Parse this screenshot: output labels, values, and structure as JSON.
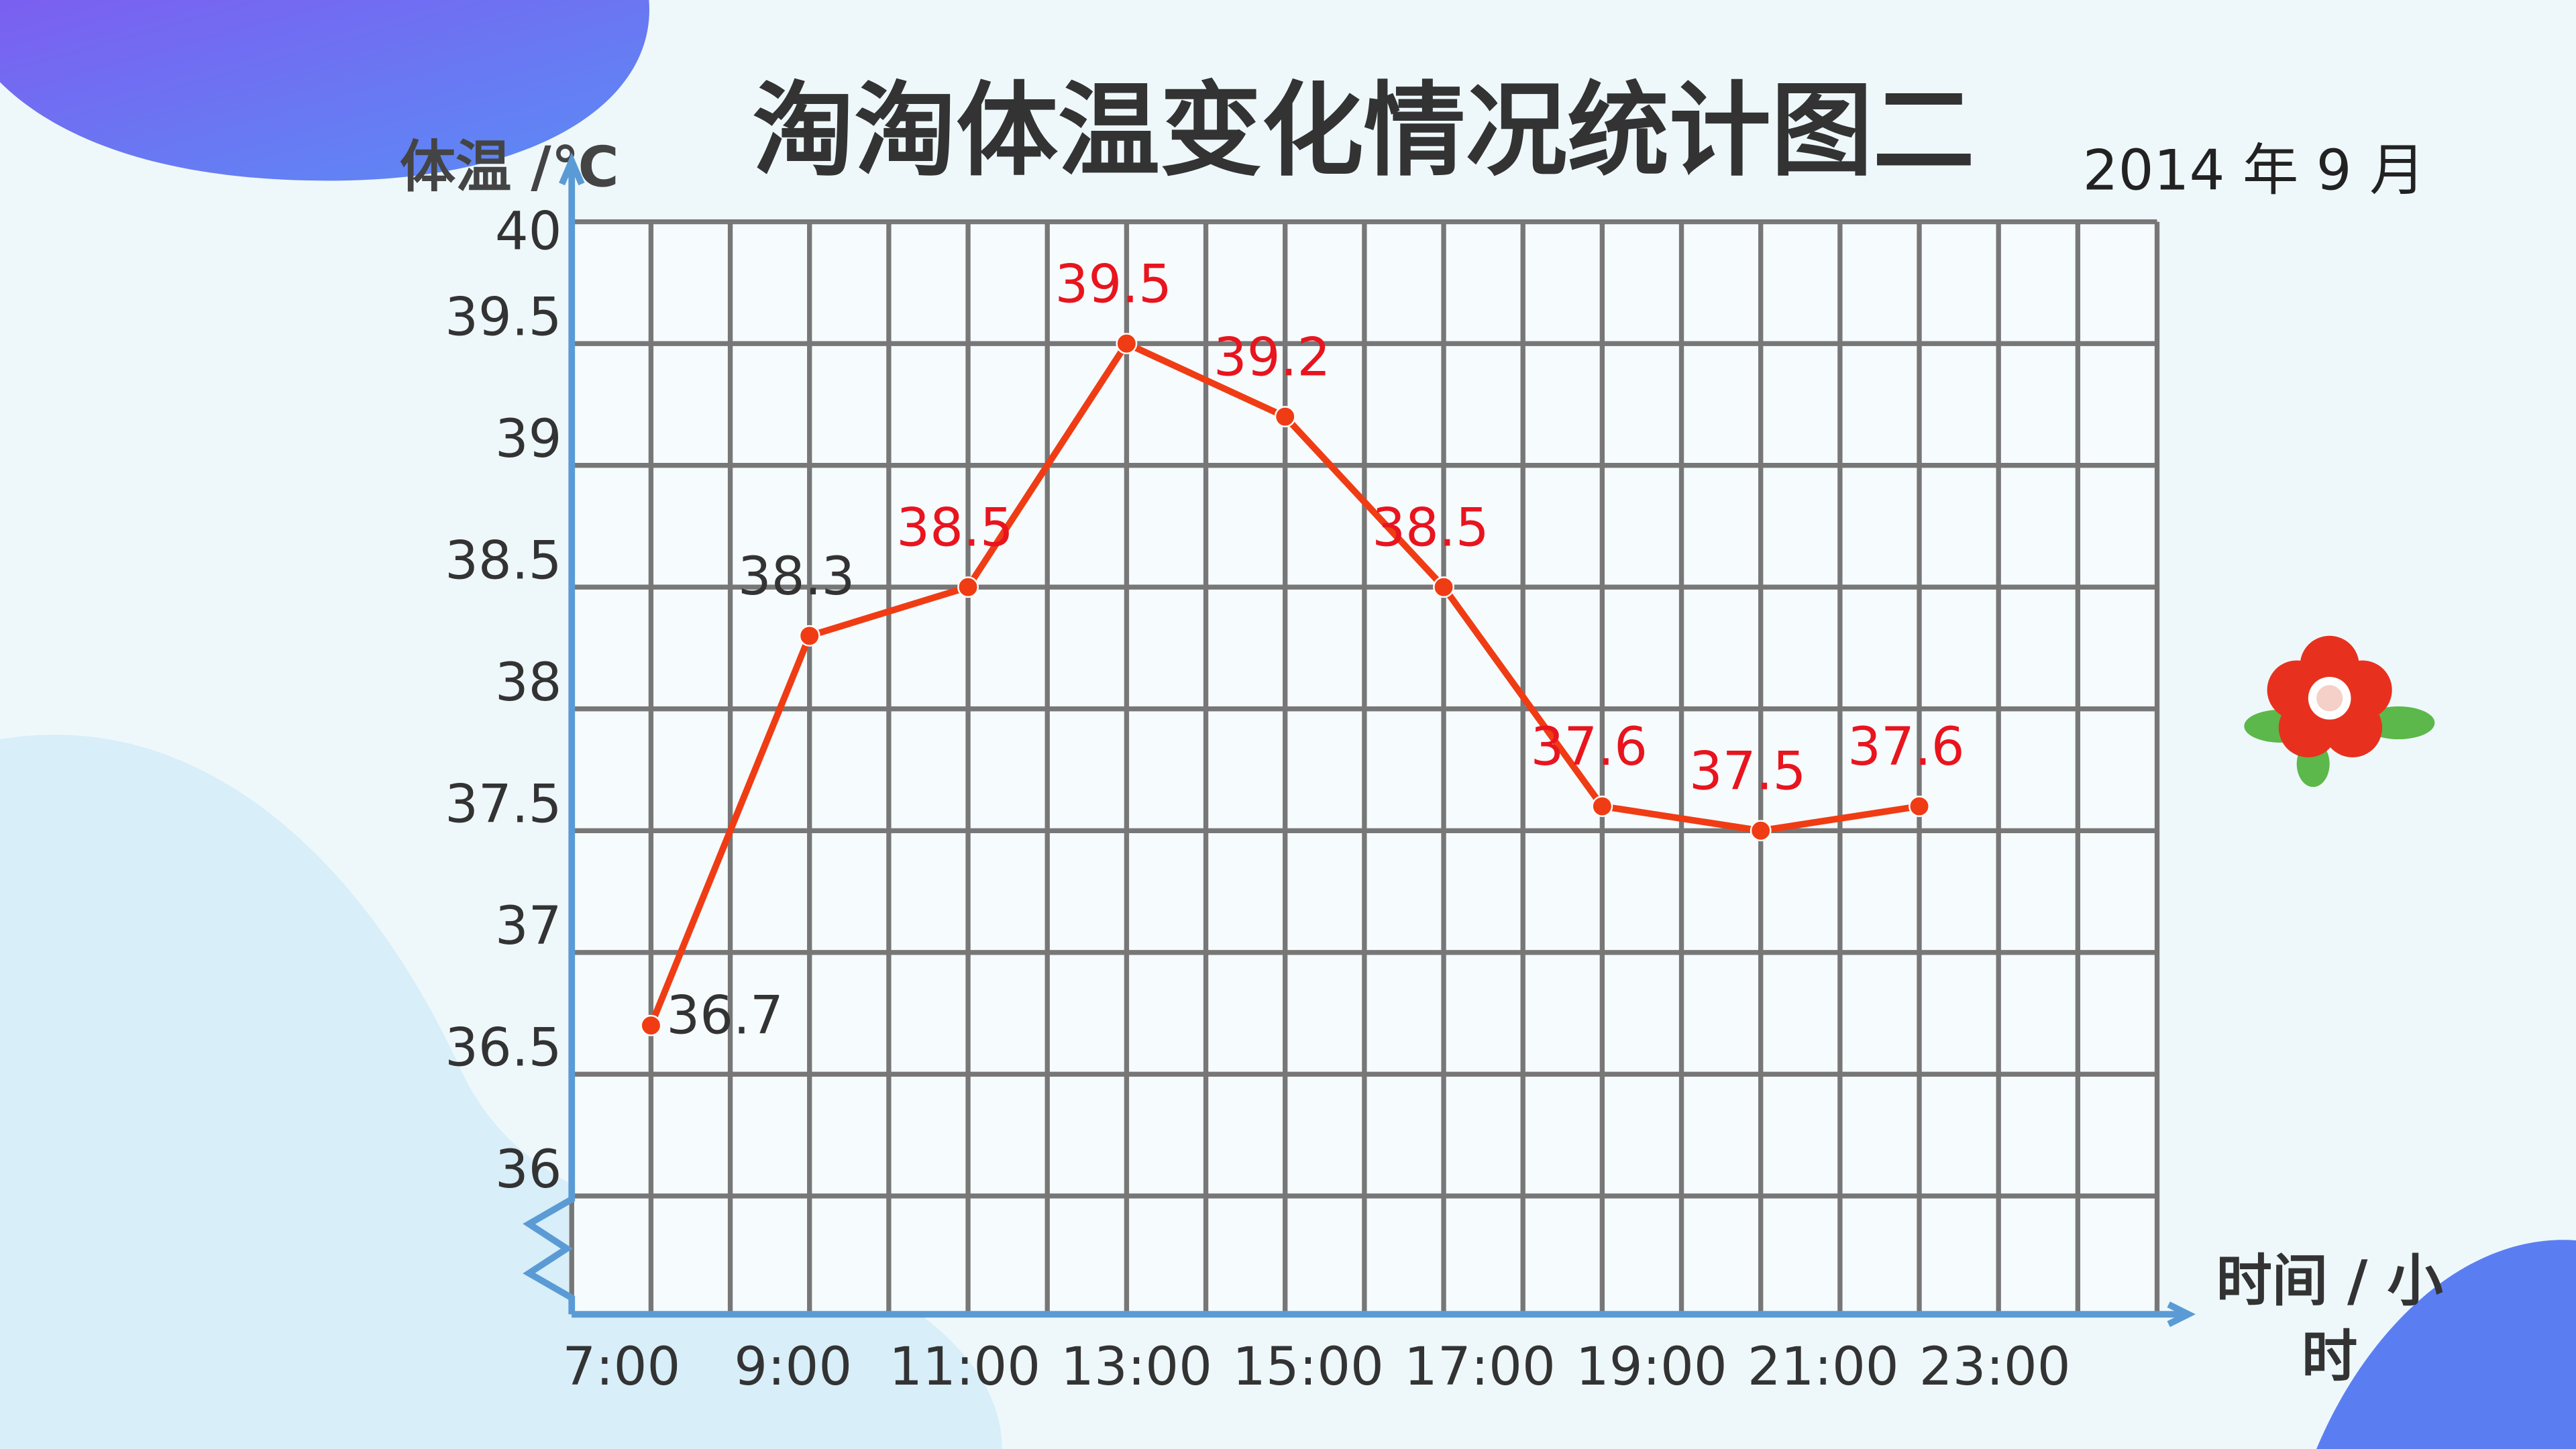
{
  "chart_data": {
    "type": "line",
    "title": "淘淘体温变化情况统计图二",
    "subtitle": "2014 年 9 月",
    "y_label": "体温 /℃",
    "x_label": "时间 / 小时",
    "categories": [
      "7:00",
      "9:00",
      "11:00",
      "13:00",
      "15:00",
      "17:00",
      "19:00",
      "21:00",
      "23:00"
    ],
    "series": [
      {
        "name": "体温",
        "color": "#f03c14",
        "values": [
          36.7,
          38.3,
          38.5,
          39.5,
          39.2,
          38.5,
          37.6,
          37.5,
          37.6
        ],
        "value_label_colors": [
          "#333333",
          "#333333",
          "#e8141e",
          "#e8141e",
          "#e8141e",
          "#e8141e",
          "#e8141e",
          "#e8141e",
          "#e8141e"
        ]
      }
    ],
    "ylim": [
      36,
      40
    ],
    "yticks": [
      36,
      36.5,
      37,
      37.5,
      38,
      38.5,
      39,
      39.5,
      40
    ],
    "grid": true
  }
}
